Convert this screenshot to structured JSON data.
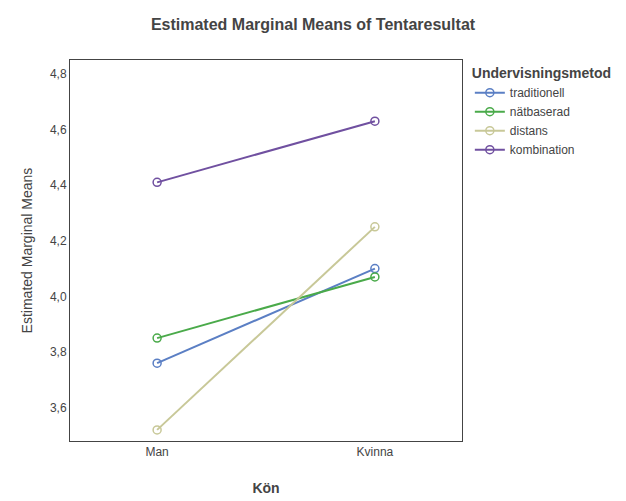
{
  "chart_data": {
    "type": "line",
    "title": "Estimated Marginal Means of Tentaresultat",
    "x_label": "Kön",
    "y_label": "Estimated Marginal Means",
    "legend_title": "Undervisningsmetod",
    "categories": [
      "Man",
      "Kvinna"
    ],
    "series": [
      {
        "name": "traditionell",
        "color": "#5b7fc4",
        "values": [
          3.76,
          4.1
        ]
      },
      {
        "name": "nätbaserad",
        "color": "#4aaa4a",
        "values": [
          3.85,
          4.07
        ]
      },
      {
        "name": "distans",
        "color": "#c8c898",
        "values": [
          3.52,
          4.25
        ]
      },
      {
        "name": "kombination",
        "color": "#7050a0",
        "values": [
          4.41,
          4.63
        ]
      }
    ],
    "ylim": [
      3.48,
      4.85
    ],
    "yticks": [
      {
        "value": 3.6,
        "label": "3,6"
      },
      {
        "value": 3.8,
        "label": "3,8"
      },
      {
        "value": 4.0,
        "label": "4,0"
      },
      {
        "value": 4.2,
        "label": "4,2"
      },
      {
        "value": 4.4,
        "label": "4,4"
      },
      {
        "value": 4.6,
        "label": "4,6"
      },
      {
        "value": 4.8,
        "label": "4,8"
      }
    ],
    "marker": "circle-open",
    "grid": false,
    "legend": "right"
  }
}
